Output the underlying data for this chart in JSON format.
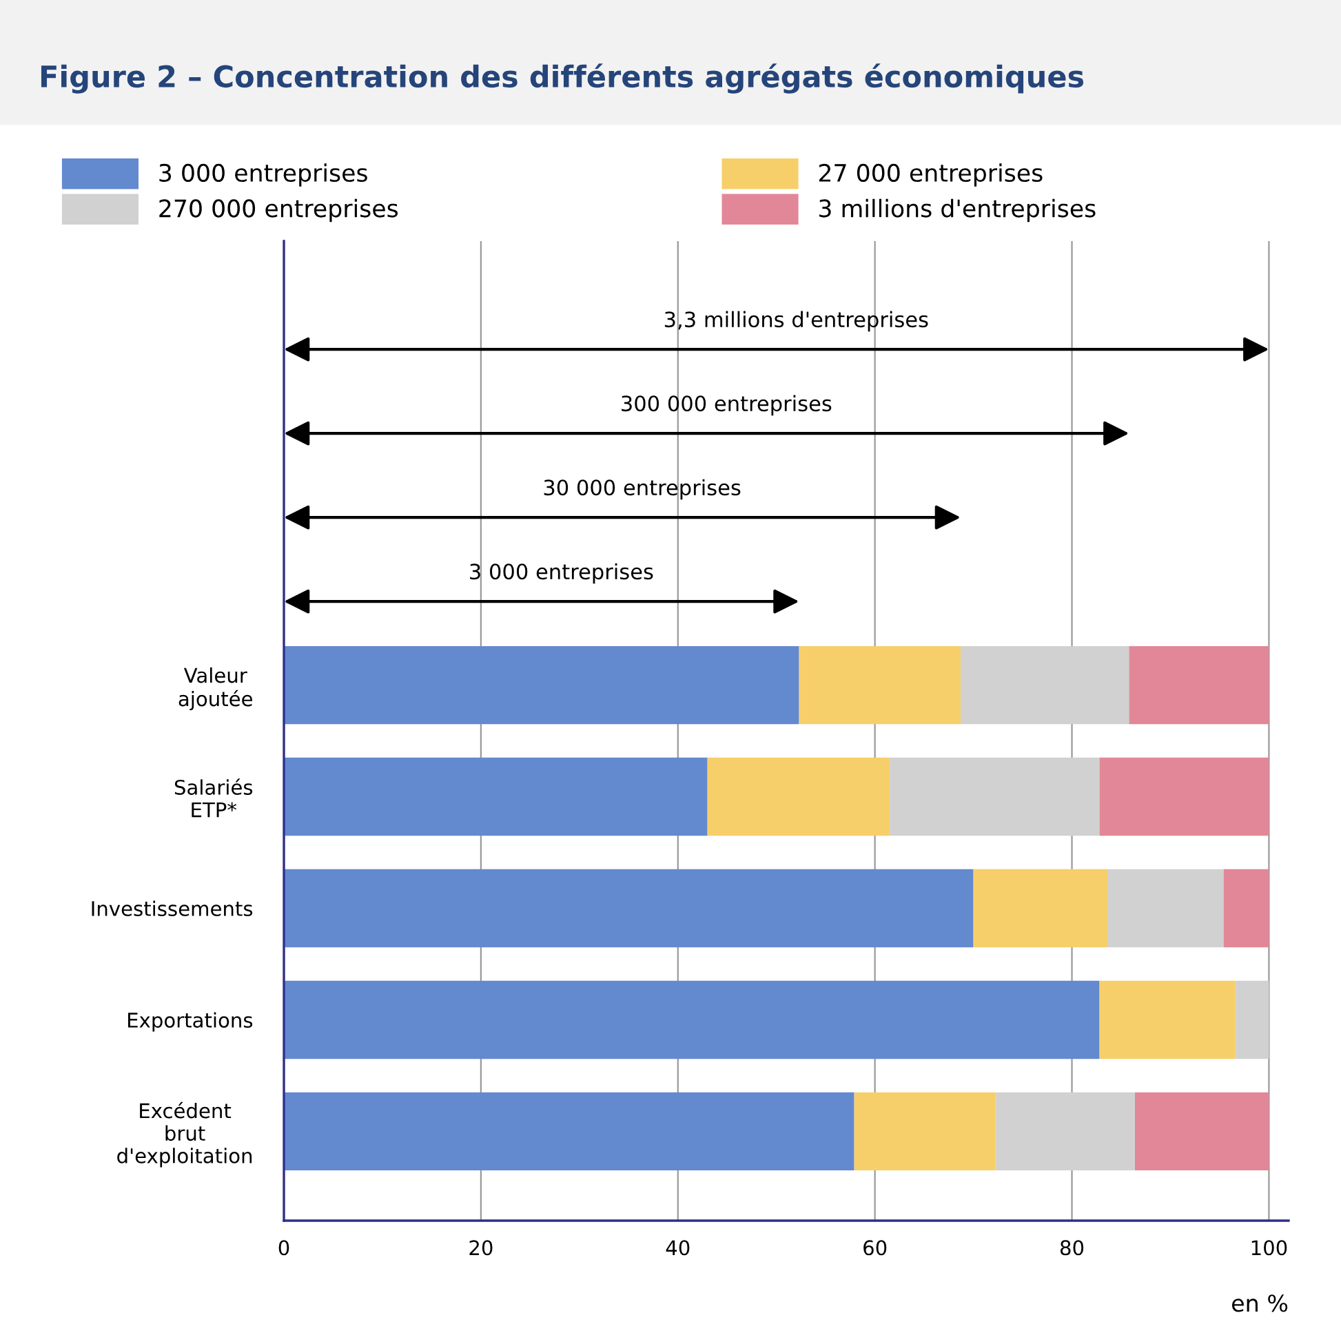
{
  "chart_data": {
    "type": "bar",
    "orientation": "horizontal",
    "stacked": true,
    "title": "Figure 2 – Concentration des différents agrégats économiques",
    "xlabel": "en %",
    "categories": [
      "Valeur\najoutée",
      "Salariés\nETP*",
      "Investissements",
      "Exportations",
      "Excédent\nbrut\nd'exploitation"
    ],
    "series": [
      {
        "name": "3 000 entreprises",
        "color": "#6389cf",
        "values": [
          52.3,
          43.0,
          70.0,
          82.8,
          57.9
        ]
      },
      {
        "name": "27 000 entreprises",
        "color": "#f6cf6a",
        "values": [
          16.4,
          18.5,
          13.6,
          13.8,
          14.4
        ]
      },
      {
        "name": "270 000 entreprises",
        "color": "#d1d1d1",
        "values": [
          17.1,
          21.3,
          11.8,
          3.4,
          14.1
        ]
      },
      {
        "name": "3 millions d'entreprises",
        "color": "#e28797",
        "values": [
          14.2,
          17.2,
          4.6,
          0,
          13.6
        ]
      }
    ],
    "xlim": [
      0,
      102
    ],
    "xticks": [
      0,
      20,
      40,
      60,
      80,
      100
    ],
    "grid": "x",
    "legend": "top",
    "annotations": [
      "3,3 millions d'entreprises",
      "300 000 entreprises",
      "30 000 entreprises",
      "3 000 entreprises"
    ]
  }
}
